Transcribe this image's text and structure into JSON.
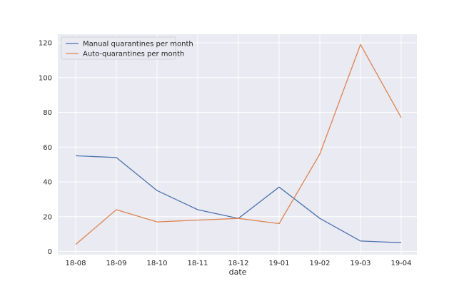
{
  "chart_data": {
    "type": "line",
    "title": "",
    "xlabel": "date",
    "ylabel": "",
    "categories": [
      "18-08",
      "18-09",
      "18-10",
      "18-11",
      "18-12",
      "19-01",
      "19-02",
      "19-03",
      "19-04"
    ],
    "ylim": [
      0,
      120
    ],
    "y_ticks": [
      0,
      20,
      40,
      60,
      80,
      100,
      120
    ],
    "grid": true,
    "legend_position": "top-left",
    "background": "#eaeaf2",
    "series": [
      {
        "name": "Manual quarantines per month",
        "color": "#4c72b0",
        "values": [
          55,
          54,
          35,
          24,
          19,
          37,
          19,
          6,
          5
        ]
      },
      {
        "name": "Auto-quarantines per month",
        "color": "#dd8452",
        "values": [
          4,
          24,
          17,
          18,
          19,
          16,
          56,
          119,
          77
        ]
      }
    ]
  }
}
